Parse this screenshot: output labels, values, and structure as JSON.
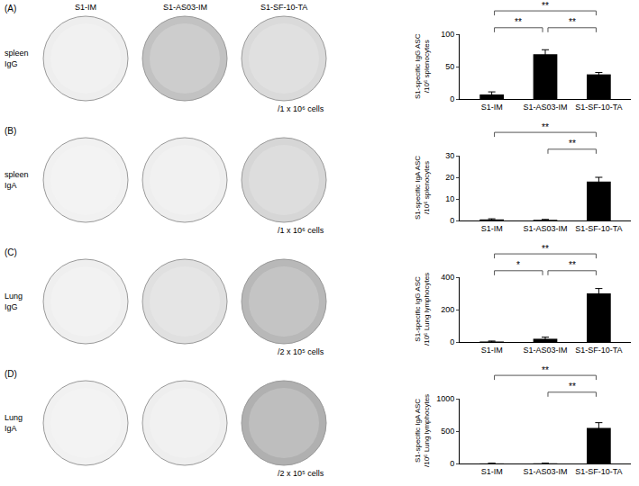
{
  "chart_data": [
    {
      "type": "bar",
      "panel": "(A)",
      "row_label": [
        "spleen",
        "IgG"
      ],
      "cell_count": "/1 x 10⁶ cells",
      "ylabel": [
        "S1-specific IgG ASC",
        "/10⁶ splenocytes"
      ],
      "categories": [
        "S1-IM",
        "S1-AS03-IM",
        "S1-SF-10-TA"
      ],
      "values": [
        7,
        69,
        38
      ],
      "errors": [
        4,
        7,
        3
      ],
      "color": "#000000",
      "ylim": [
        0,
        100
      ],
      "yticks": [
        0,
        50,
        100
      ],
      "grid": false,
      "significance": [
        {
          "from": "S1-IM",
          "to": "S1-SF-10-TA",
          "label": "**"
        },
        {
          "from": "S1-IM",
          "to": "S1-AS03-IM",
          "label": "**"
        },
        {
          "from": "S1-AS03-IM",
          "to": "S1-SF-10-TA",
          "label": "**"
        }
      ]
    },
    {
      "type": "bar",
      "panel": "(B)",
      "row_label": [
        "spleen",
        "IgA"
      ],
      "cell_count": "/1 x 10⁶ cells",
      "ylabel": [
        "S1-specific IgA ASC",
        "/10⁶ splenocytes"
      ],
      "categories": [
        "S1-IM",
        "S1-AS03-IM",
        "S1-SF-10-TA"
      ],
      "values": [
        0.5,
        0.3,
        18
      ],
      "errors": [
        0.3,
        0.2,
        2
      ],
      "color": "#000000",
      "ylim": [
        0,
        30
      ],
      "yticks": [
        0,
        10,
        20,
        30
      ],
      "grid": false,
      "significance": [
        {
          "from": "S1-IM",
          "to": "S1-SF-10-TA",
          "label": "**"
        },
        {
          "from": "S1-AS03-IM",
          "to": "S1-SF-10-TA",
          "label": "**"
        }
      ]
    },
    {
      "type": "bar",
      "panel": "(C)",
      "row_label": [
        "Lung",
        "IgG"
      ],
      "cell_count": "/2 x 10⁵ cells",
      "ylabel": [
        "S1-specific IgG ASC",
        "/10⁶ Lung lymphocytes"
      ],
      "categories": [
        "S1-IM",
        "S1-AS03-IM",
        "S1-SF-10-TA"
      ],
      "values": [
        3,
        20,
        300
      ],
      "errors": [
        3,
        10,
        30
      ],
      "color": "#000000",
      "ylim": [
        0,
        400
      ],
      "yticks": [
        0,
        200,
        400
      ],
      "grid": false,
      "significance": [
        {
          "from": "S1-IM",
          "to": "S1-SF-10-TA",
          "label": "**"
        },
        {
          "from": "S1-IM",
          "to": "S1-AS03-IM",
          "label": "*"
        },
        {
          "from": "S1-AS03-IM",
          "to": "S1-SF-10-TA",
          "label": "**"
        }
      ]
    },
    {
      "type": "bar",
      "panel": "(D)",
      "row_label": [
        "Lung",
        "IgA"
      ],
      "cell_count": "/2 x 10⁵ cells",
      "ylabel": [
        "S1-specific IgA ASC",
        "/10⁶ Lung lymphocytes"
      ],
      "categories": [
        "S1-IM",
        "S1-AS03-IM",
        "S1-SF-10-TA"
      ],
      "values": [
        2,
        3,
        550
      ],
      "errors": [
        1,
        2,
        80
      ],
      "color": "#000000",
      "ylim": [
        0,
        1000
      ],
      "yticks": [
        0,
        500,
        1000
      ],
      "grid": false,
      "significance": [
        {
          "from": "S1-IM",
          "to": "S1-SF-10-TA",
          "label": "**"
        },
        {
          "from": "S1-AS03-IM",
          "to": "S1-SF-10-TA",
          "label": "**"
        }
      ]
    }
  ]
}
